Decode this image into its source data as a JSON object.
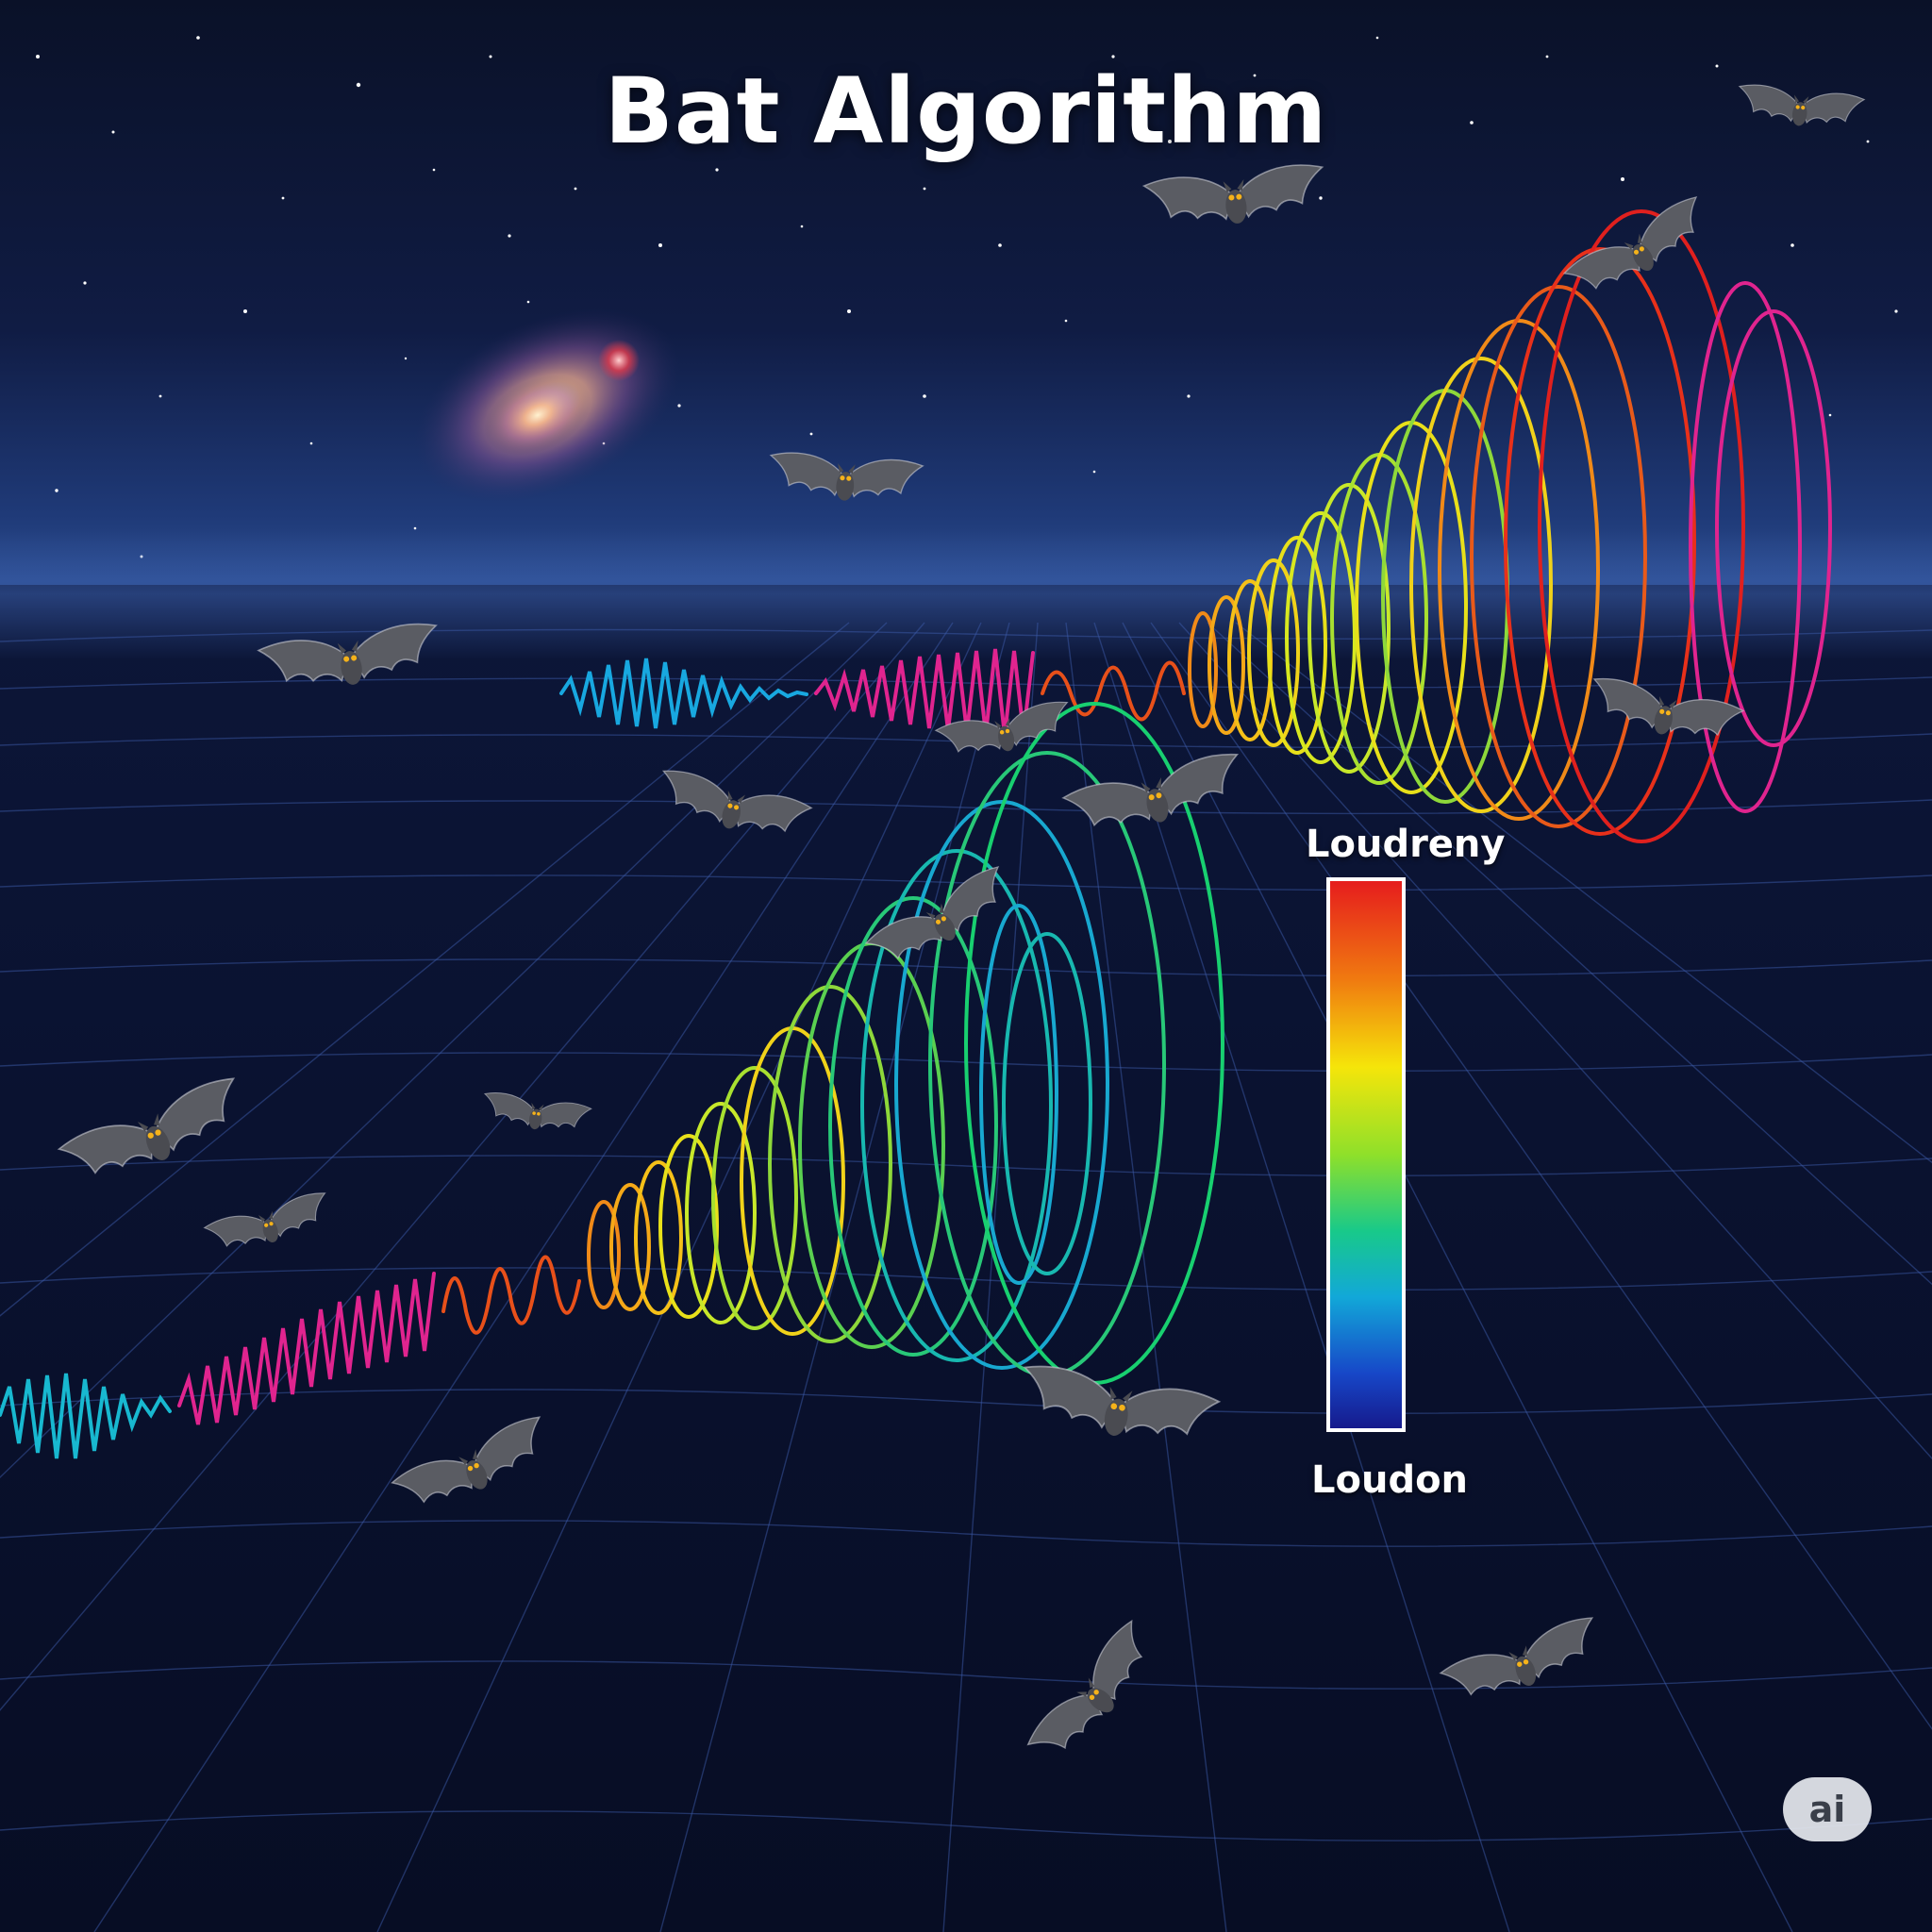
{
  "title": "Bat Algorithm",
  "legend": {
    "top_label": "Loudreny",
    "bottom_label": "Loudon",
    "gradient_colors": [
      "#e61d1d",
      "#f07a10",
      "#f5e50a",
      "#8fe02a",
      "#18c98a",
      "#12a8d8",
      "#1747c8",
      "#161a8c"
    ]
  },
  "badge": {
    "text": "ai"
  },
  "colors": {
    "sky_top": "#0a1128",
    "horizon": "#2a4a8c",
    "grid_line": "#3c5aa8",
    "bat_body": "#55575e",
    "bat_eye": "#f5b21a"
  },
  "icons": {
    "bat": "bat-icon",
    "galaxy": "galaxy-icon",
    "sound-wave": "sound-wave-icon"
  }
}
